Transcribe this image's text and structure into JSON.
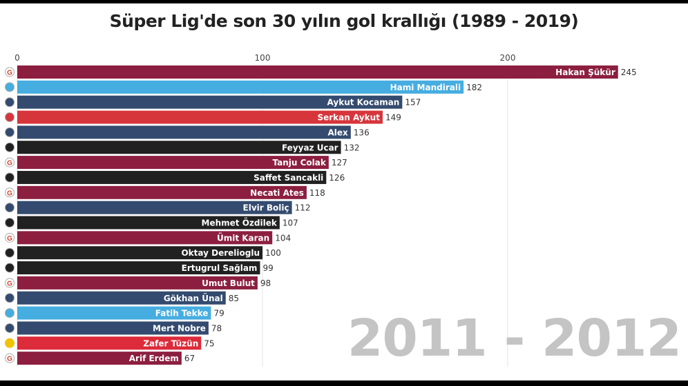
{
  "chart_data": {
    "type": "bar",
    "orientation": "horizontal",
    "title": "Süper Lig'de son 30 yılın gol krallığı (1989 - 2019)",
    "period_label": "2011 - 2012",
    "xlim": [
      0,
      250
    ],
    "xticks": [
      0,
      100,
      200
    ],
    "grid": true,
    "team_colors": {
      "galatasaray": "#8c1f40",
      "trabzonspor": "#46ade0",
      "fenerbahce": "#344b6f",
      "samsunspor": "#d6353b",
      "besiktas": "#212121",
      "eskisehirspor": "#dc2b3a"
    },
    "bars": [
      {
        "name": "Hakan Şükür",
        "value": 245,
        "team": "galatasaray"
      },
      {
        "name": "Hami Mandirali",
        "value": 182,
        "team": "trabzonspor"
      },
      {
        "name": "Aykut Kocaman",
        "value": 157,
        "team": "fenerbahce"
      },
      {
        "name": "Serkan Aykut",
        "value": 149,
        "team": "samsunspor"
      },
      {
        "name": "Alex",
        "value": 136,
        "team": "fenerbahce"
      },
      {
        "name": "Feyyaz Ucar",
        "value": 132,
        "team": "besiktas"
      },
      {
        "name": "Tanju Colak",
        "value": 127,
        "team": "galatasaray"
      },
      {
        "name": "Saffet Sancakli",
        "value": 126,
        "team": "besiktas"
      },
      {
        "name": "Necati Ates",
        "value": 118,
        "team": "galatasaray"
      },
      {
        "name": "Elvir Boliç",
        "value": 112,
        "team": "fenerbahce"
      },
      {
        "name": "Mehmet Özdilek",
        "value": 107,
        "team": "besiktas"
      },
      {
        "name": "Ümit Karan",
        "value": 104,
        "team": "galatasaray"
      },
      {
        "name": "Oktay Derelioglu",
        "value": 100,
        "team": "besiktas"
      },
      {
        "name": "Ertugrul Sağlam",
        "value": 99,
        "team": "besiktas"
      },
      {
        "name": "Umut Bulut",
        "value": 98,
        "team": "galatasaray"
      },
      {
        "name": "Gökhan Ünal",
        "value": 85,
        "team": "fenerbahce"
      },
      {
        "name": "Fatih Tekke",
        "value": 79,
        "team": "trabzonspor"
      },
      {
        "name": "Mert Nobre",
        "value": 78,
        "team": "fenerbahce"
      },
      {
        "name": "Zafer Tüzün",
        "value": 75,
        "team": "eskisehirspor"
      },
      {
        "name": "Arif Erdem",
        "value": 67,
        "team": "galatasaray"
      }
    ]
  }
}
